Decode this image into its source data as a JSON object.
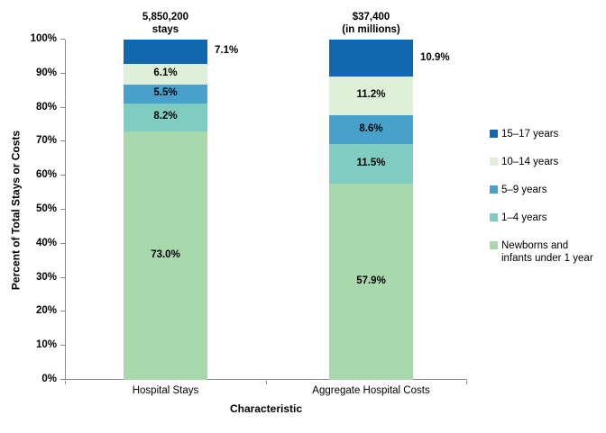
{
  "chart_data": {
    "type": "bar",
    "subtype": "stacked-vertical",
    "title": "",
    "xlabel": "Characteristic",
    "ylabel": "Percent of Total Stays or Costs",
    "ylim": [
      0,
      100
    ],
    "y_ticks": [
      "0%",
      "10%",
      "20%",
      "30%",
      "40%",
      "50%",
      "60%",
      "70%",
      "80%",
      "90%",
      "100%"
    ],
    "grid": false,
    "legend_position": "right",
    "axis_color": "#8c8c8c",
    "categories": [
      "Hospital Stays",
      "Aggregate Hospital Costs"
    ],
    "category_totals": [
      {
        "lines": [
          "5,850,200",
          "stays"
        ]
      },
      {
        "lines": [
          "$37,400",
          "(in millions)"
        ]
      }
    ],
    "series": [
      {
        "name": "Newborns and infants under 1 year",
        "color": "#A7D9AD",
        "values": [
          73.0,
          57.9
        ],
        "labels": [
          "73.0%",
          "57.9%"
        ],
        "label_outside": false
      },
      {
        "name": "1–4 years",
        "color": "#7FCDC1",
        "values": [
          8.2,
          11.5
        ],
        "labels": [
          "8.2%",
          "11.5%"
        ],
        "label_outside": false
      },
      {
        "name": "5–9 years",
        "color": "#48A1CB",
        "values": [
          5.5,
          8.6
        ],
        "labels": [
          "5.5%",
          "8.6%"
        ],
        "label_outside": false
      },
      {
        "name": "10–14 years",
        "color": "#DFF0D8",
        "values": [
          6.1,
          11.2
        ],
        "labels": [
          "6.1%",
          "11.2%"
        ],
        "label_outside": false
      },
      {
        "name": "15–17 years",
        "color": "#1268AE",
        "values": [
          7.1,
          10.9
        ],
        "labels": [
          "7.1%",
          "10.9%"
        ],
        "label_outside": true
      }
    ],
    "legend": [
      {
        "label": "15–17 years",
        "color": "#1268AE"
      },
      {
        "label": "10–14 years",
        "color": "#DFF0D8"
      },
      {
        "label": "5–9 years",
        "color": "#48A1CB"
      },
      {
        "label": "1–4 years",
        "color": "#7FCDC1"
      },
      {
        "label": "Newborns and infants under 1 year",
        "color": "#A7D9AD"
      }
    ]
  }
}
